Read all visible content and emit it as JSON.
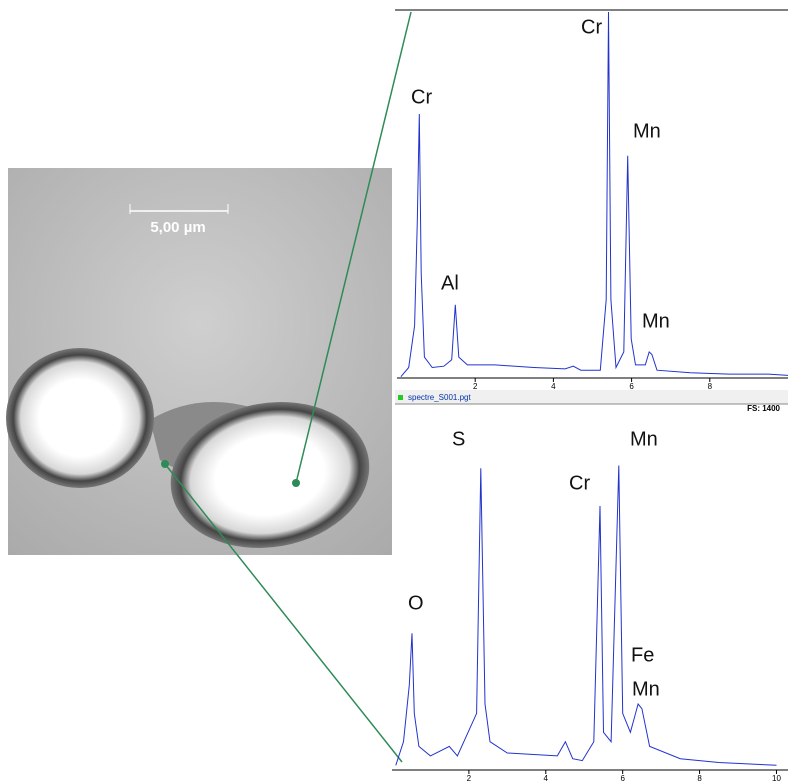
{
  "image": {
    "scale_bar": "5,00 µm"
  },
  "chart_data": [
    {
      "type": "line",
      "file": "spectre_S001.pgt",
      "full_scale": "FS: 1400",
      "annotations": [
        "Cr",
        "Cr",
        "Mn",
        "Al",
        "Mn"
      ],
      "xlim": [
        0,
        10
      ],
      "xticks": [
        2,
        4,
        6,
        8
      ],
      "ylim": [
        0,
        1400
      ],
      "x": [
        0.1,
        0.3,
        0.45,
        0.52,
        0.57,
        0.62,
        0.7,
        0.9,
        1.2,
        1.4,
        1.49,
        1.58,
        1.8,
        2.5,
        3.5,
        4.3,
        4.51,
        4.7,
        5.2,
        5.35,
        5.41,
        5.47,
        5.6,
        5.8,
        5.9,
        5.99,
        6.1,
        6.35,
        6.45,
        6.52,
        6.65,
        7.5,
        8.5,
        9.5,
        10
      ],
      "series": [
        {
          "color": "#2233cc",
          "values": [
            5,
            40,
            200,
            600,
            1010,
            400,
            80,
            40,
            45,
            70,
            280,
            80,
            50,
            50,
            40,
            35,
            45,
            30,
            30,
            300,
            1400,
            300,
            40,
            100,
            850,
            150,
            50,
            50,
            100,
            90,
            30,
            20,
            15,
            15,
            10
          ]
        }
      ]
    },
    {
      "type": "line",
      "annotations": [
        "S",
        "Mn",
        "Cr",
        "O",
        "Fe",
        "Mn"
      ],
      "xlim": [
        0,
        10.3
      ],
      "xticks": [
        2,
        4,
        6,
        8,
        10
      ],
      "ylim": [
        0,
        350
      ],
      "x": [
        0.1,
        0.3,
        0.45,
        0.52,
        0.58,
        0.7,
        1.0,
        1.49,
        1.7,
        2.2,
        2.31,
        2.42,
        2.55,
        3,
        4.3,
        4.51,
        4.7,
        4.95,
        5.25,
        5.41,
        5.5,
        5.7,
        5.9,
        6.0,
        6.2,
        6.4,
        6.5,
        6.7,
        7.5,
        8.5,
        10
      ],
      "series": [
        {
          "color": "#2233cc",
          "values": [
            5,
            30,
            90,
            145,
            60,
            25,
            15,
            25,
            15,
            60,
            320,
            70,
            30,
            18,
            15,
            30,
            12,
            10,
            30,
            280,
            40,
            30,
            323,
            60,
            40,
            70,
            65,
            25,
            12,
            8,
            5
          ]
        }
      ]
    }
  ]
}
